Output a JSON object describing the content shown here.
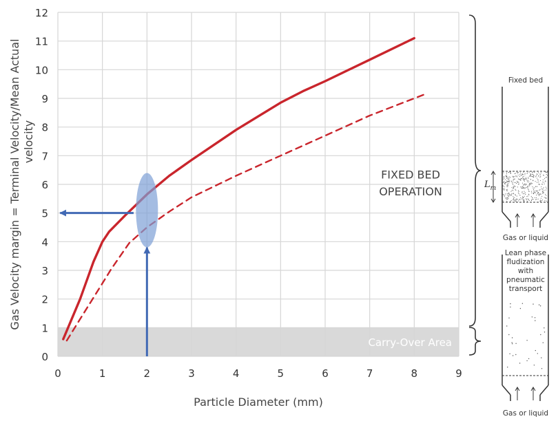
{
  "chart_data": {
    "type": "line",
    "title": "",
    "xlabel": "Particle Diameter (mm)",
    "ylabel_line1": "Gas Velocity margin = Terminal Velocity/Mean Actual",
    "ylabel_line2": "velocity",
    "xlim": [
      0,
      9
    ],
    "ylim": [
      0,
      12
    ],
    "x_ticks": [
      0,
      1,
      2,
      3,
      4,
      5,
      6,
      7,
      8,
      9
    ],
    "y_ticks": [
      0,
      1,
      2,
      3,
      4,
      5,
      6,
      7,
      8,
      9,
      10,
      11,
      12
    ],
    "grid": true,
    "series": [
      {
        "style": "solid",
        "color": "#c9252c",
        "x": [
          0.12,
          0.5,
          0.8,
          1.0,
          1.15,
          1.5,
          2.0,
          2.5,
          3.0,
          4.0,
          5.0,
          5.5,
          6.0,
          7.0,
          8.0
        ],
        "y": [
          0.6,
          2.0,
          3.3,
          4.0,
          4.35,
          4.9,
          5.65,
          6.3,
          6.85,
          7.9,
          8.85,
          9.25,
          9.6,
          10.35,
          11.1
        ]
      },
      {
        "style": "dashed",
        "color": "#c9252c",
        "x": [
          0.2,
          0.5,
          1.0,
          1.2,
          1.6,
          2.0,
          2.5,
          3.0,
          4.0,
          5.0,
          6.0,
          7.0,
          8.0,
          8.25
        ],
        "y": [
          0.55,
          1.3,
          2.55,
          3.05,
          3.95,
          4.5,
          5.05,
          5.55,
          6.3,
          7.0,
          7.7,
          8.4,
          9.0,
          9.15
        ]
      }
    ],
    "regions": [
      {
        "label": "Carry-Over Area",
        "y_range": [
          0,
          1
        ],
        "color": "#d9d9d9"
      }
    ],
    "annotations": {
      "fixed_bed_line1": "FIXED BED",
      "fixed_bed_line2": "OPERATION",
      "ellipse_center": [
        2.0,
        5.1
      ],
      "up_arrow_x": 2.0,
      "up_arrow_from_y": 0,
      "up_arrow_to_y": 3.8,
      "left_arrow_y": 5.0,
      "left_arrow_from_x": 1.7,
      "left_arrow_to_x": 0.05
    }
  },
  "diagram": {
    "fixed_bed": {
      "title": "Fixed bed",
      "lm_label": "L",
      "lm_sub": "m",
      "inlet_label": "Gas or liquid"
    },
    "lean_phase": {
      "title_lines": [
        "Lean phase",
        "fludization",
        "with",
        "pneumatic",
        "transport"
      ],
      "inlet_label": "Gas or liquid"
    }
  },
  "colors": {
    "curve": "#c9252c",
    "arrow": "#4169b4",
    "ellipse": "#7d9fd6",
    "grid": "#d6d6d6",
    "carry_over": "#d9d9d9"
  }
}
